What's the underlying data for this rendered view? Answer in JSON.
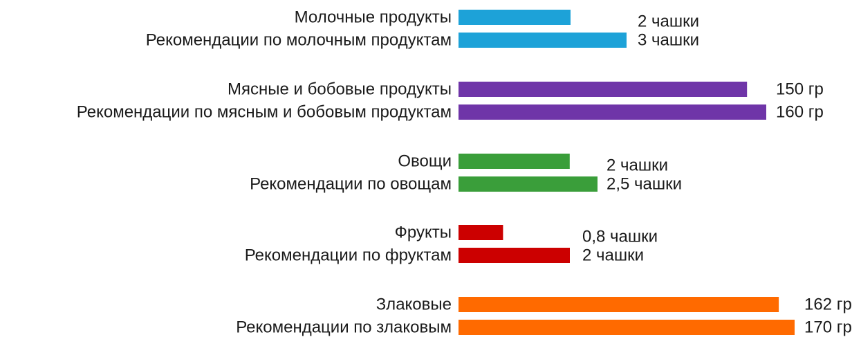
{
  "chart_data": {
    "type": "bar",
    "orientation": "horizontal",
    "title": "",
    "xlabel": "",
    "ylabel": "",
    "grid": false,
    "legend": "none",
    "groups": [
      {
        "color": "#1da2d8",
        "bars": [
          {
            "label": "Молочные продукты",
            "value": 2,
            "value_label": "2 чашки"
          },
          {
            "label": "Рекомендации по молочным продуктам",
            "value": 3,
            "value_label": "3 чашки"
          }
        ]
      },
      {
        "color": "#6f35a8",
        "bars": [
          {
            "label": "Мясные и бобовые продукты",
            "value": 150,
            "value_label": "150 гр"
          },
          {
            "label": "Рекомендации по мясным и бобовым продуктам",
            "value": 160,
            "value_label": "160 гр"
          }
        ]
      },
      {
        "color": "#3a9e3a",
        "bars": [
          {
            "label": "Овощи",
            "value": 2,
            "value_label": "2 чашки"
          },
          {
            "label": "Рекомендации по овощам",
            "value": 2.5,
            "value_label": "2,5 чашки"
          }
        ]
      },
      {
        "color": "#cc0000",
        "bars": [
          {
            "label": "Фрукты",
            "value": 0.8,
            "value_label": "0,8 чашки"
          },
          {
            "label": "Рекомендации по фруктам",
            "value": 2,
            "value_label": "2 чашки"
          }
        ]
      },
      {
        "color": "#ff6a00",
        "bars": [
          {
            "label": "Злаковые",
            "value": 162,
            "value_label": "162 гр"
          },
          {
            "label": "Рекомендации по злаковым",
            "value": 170,
            "value_label": "170 гр"
          }
        ]
      }
    ]
  }
}
